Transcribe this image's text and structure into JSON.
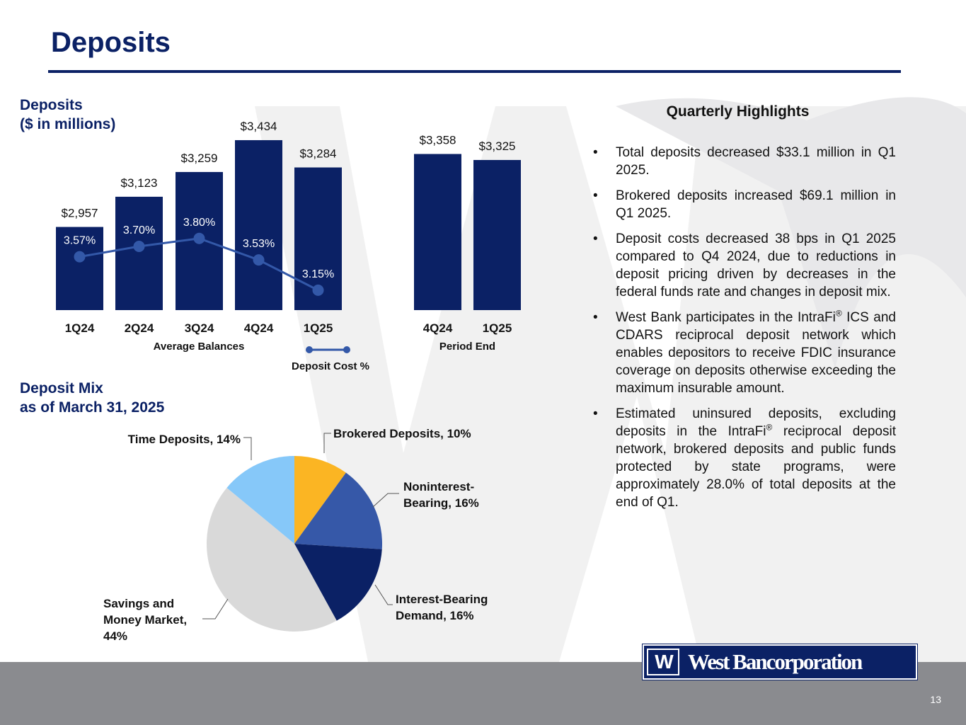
{
  "title": "Deposits",
  "deposits_chart_title": [
    "Deposits",
    "($ in millions)"
  ],
  "mix_chart_title": [
    "Deposit Mix",
    "as of March 31, 2025"
  ],
  "highlights": {
    "heading": "Quarterly Highlights",
    "bullets": [
      {
        "text": "Total deposits decreased $33.1 million in Q1 2025."
      },
      {
        "text": "Brokered deposits increased $69.1 million in Q1 2025."
      },
      {
        "text": "Deposit costs decreased 38 bps in Q1 2025 compared to Q4 2024, due to reductions in deposit pricing driven by decreases in the federal funds rate and changes in deposit mix."
      },
      {
        "pre": "West Bank participates in the IntraFi",
        "sup": "®",
        "post": " ICS and CDARS reciprocal deposit network which enables depositors to receive FDIC insurance coverage on deposits otherwise exceeding the maximum insurable amount."
      },
      {
        "pre": "Estimated uninsured deposits, excluding deposits in the IntraFi",
        "sup": "®",
        "post": " reciprocal deposit network, brokered deposits and public funds protected by state programs, were approximately 28.0% of total deposits at the end of Q1."
      }
    ]
  },
  "logo": {
    "mark": "W",
    "text": "West Bancorporation"
  },
  "page_number": "13",
  "colors": {
    "navy": "#0b2165",
    "line": "#3358a8",
    "pie_gold": "#fbb523",
    "pie_blue": "#3658a8",
    "pie_navy": "#0b2165",
    "pie_gray": "#d9d9d9",
    "pie_light_blue": "#86c8f9"
  },
  "chart_data": [
    {
      "type": "bar",
      "title": "Deposits ($ in millions)",
      "groups": [
        {
          "label": "Average Balances",
          "categories": [
            "1Q24",
            "2Q24",
            "3Q24",
            "4Q24",
            "1Q25"
          ],
          "values": [
            2957,
            3123,
            3259,
            3434,
            3284
          ],
          "value_labels": [
            "$2,957",
            "$3,123",
            "$3,259",
            "$3,434",
            "$3,284"
          ]
        },
        {
          "label": "Period End",
          "categories": [
            "4Q24",
            "1Q25"
          ],
          "values": [
            3358,
            3325
          ],
          "value_labels": [
            "$3,358",
            "$3,325"
          ]
        }
      ],
      "ylim": [
        2500,
        3500
      ],
      "line_series": {
        "name": "Deposit Cost  %",
        "categories": [
          "1Q24",
          "2Q24",
          "3Q24",
          "4Q24",
          "1Q25"
        ],
        "values": [
          3.57,
          3.7,
          3.8,
          3.53,
          3.15
        ],
        "value_labels": [
          "3.57%",
          "3.70%",
          "3.80%",
          "3.53%",
          "3.15%"
        ],
        "ylim": [
          2.9,
          4.1
        ]
      },
      "legend": "bottom"
    },
    {
      "type": "pie",
      "title": "Deposit Mix as of March 31, 2025",
      "slices": [
        {
          "label": "Brokered Deposits, 10%",
          "lines": [
            "Brokered Deposits, 10%"
          ],
          "value": 10
        },
        {
          "label": "Noninterest-Bearing, 16%",
          "lines": [
            "Noninterest-",
            "Bearing, 16%"
          ],
          "value": 16
        },
        {
          "label": "Interest-Bearing Demand, 16%",
          "lines": [
            "Interest-Bearing",
            "Demand, 16%"
          ],
          "value": 16
        },
        {
          "label": "Savings and Money Market, 44%",
          "lines": [
            "Savings and",
            "Money Market,",
            "44%"
          ],
          "value": 44
        },
        {
          "label": "Time Deposits, 14%",
          "lines": [
            "Time Deposits, 14%"
          ],
          "value": 14
        }
      ]
    }
  ]
}
